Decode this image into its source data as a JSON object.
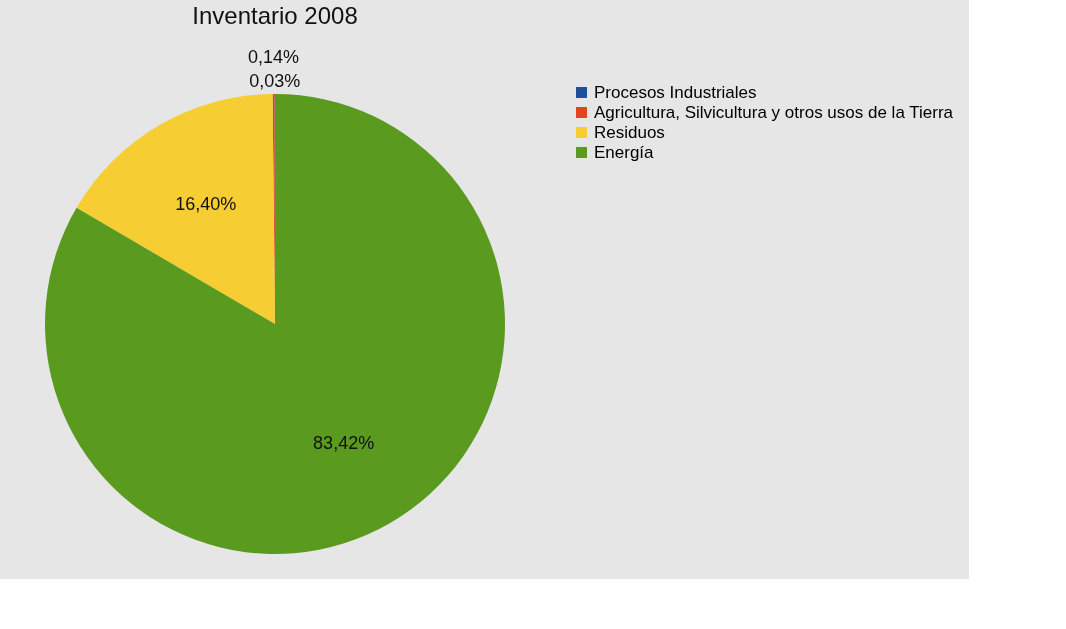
{
  "chart_data": {
    "type": "pie",
    "title": "Inventario 2008",
    "categories": [
      "Procesos Industriales",
      "Agricultura, Silvicultura y otros usos de la Tierra",
      "Residuos",
      "Energía"
    ],
    "values": [
      0.03,
      0.14,
      16.4,
      83.42
    ],
    "value_labels": [
      "0,03%",
      "0,14%",
      "16,40%",
      "83,42%"
    ],
    "colors": [
      "#1f4e9a",
      "#e0451c",
      "#f6cd32",
      "#5a9a1e"
    ],
    "legend": "right"
  }
}
